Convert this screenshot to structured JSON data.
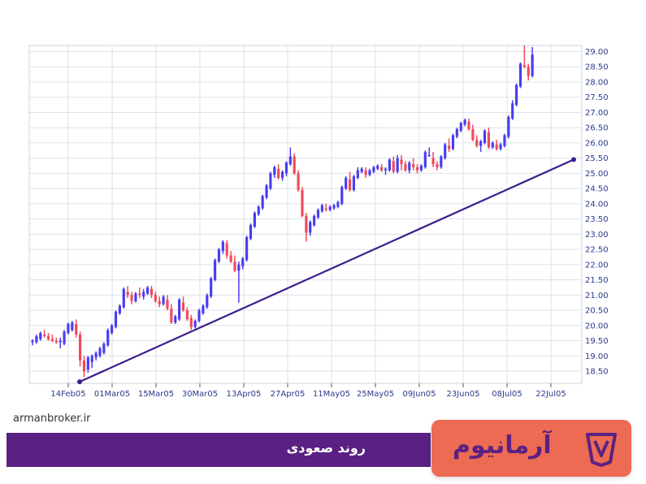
{
  "chart_data": {
    "type": "candlestick",
    "x_tick_labels": [
      "14Feb05",
      "01Mar05",
      "15Mar05",
      "30Mar05",
      "13Apr05",
      "27Apr05",
      "11May05",
      "25May05",
      "09Jun05",
      "23Jun05",
      "08Jul05",
      "22Jul05"
    ],
    "y_tick_labels": [
      "18.50",
      "19.00",
      "19.50",
      "20.00",
      "20.50",
      "21.00",
      "21.50",
      "22.00",
      "22.50",
      "23.00",
      "23.50",
      "24.00",
      "24.50",
      "25.00",
      "25.50",
      "26.00",
      "26.50",
      "27.00",
      "27.50",
      "28.00",
      "28.50",
      "29.00"
    ],
    "ylim": [
      18.1,
      29.2
    ],
    "grid": true,
    "up_color": "#4a3df0",
    "down_color": "#f04a5a",
    "trendline": {
      "label": "روند صعودی",
      "start": {
        "x": "09Feb05",
        "y": 18.15
      },
      "end": {
        "x": "31Jul05",
        "y": 25.45
      },
      "color": "#3c1d8c"
    },
    "candles": [
      {
        "d": "01Feb05",
        "o": 19.45,
        "h": 19.55,
        "l": 19.35,
        "c": 19.5
      },
      {
        "d": "02Feb05",
        "o": 19.45,
        "h": 19.7,
        "l": 19.4,
        "c": 19.65
      },
      {
        "d": "03Feb05",
        "o": 19.55,
        "h": 19.8,
        "l": 19.5,
        "c": 19.75
      },
      {
        "d": "04Feb05",
        "o": 19.7,
        "h": 19.85,
        "l": 19.6,
        "c": 19.65
      },
      {
        "d": "05Feb05",
        "o": 19.65,
        "h": 19.75,
        "l": 19.5,
        "c": 19.55
      },
      {
        "d": "06Feb05",
        "o": 19.55,
        "h": 19.7,
        "l": 19.45,
        "c": 19.5
      },
      {
        "d": "07Feb05",
        "o": 19.5,
        "h": 19.6,
        "l": 19.4,
        "c": 19.45
      },
      {
        "d": "08Feb05",
        "o": 19.45,
        "h": 19.6,
        "l": 19.25,
        "c": 19.5
      },
      {
        "d": "09Feb05",
        "o": 19.4,
        "h": 19.85,
        "l": 19.35,
        "c": 19.8
      },
      {
        "d": "10Feb05",
        "o": 19.75,
        "h": 20.1,
        "l": 19.7,
        "c": 20.05
      },
      {
        "d": "11Feb05",
        "o": 19.85,
        "h": 20.15,
        "l": 19.8,
        "c": 20.1
      },
      {
        "d": "12Feb05",
        "o": 20.05,
        "h": 20.2,
        "l": 19.6,
        "c": 19.7
      },
      {
        "d": "13Feb05",
        "o": 19.7,
        "h": 19.8,
        "l": 18.65,
        "c": 18.85
      },
      {
        "d": "14Feb05",
        "o": 18.85,
        "h": 19.0,
        "l": 18.3,
        "c": 18.5
      },
      {
        "d": "15Feb05",
        "o": 18.55,
        "h": 19.0,
        "l": 18.45,
        "c": 18.95
      },
      {
        "d": "16Feb05",
        "o": 18.8,
        "h": 19.05,
        "l": 18.6,
        "c": 19.0
      },
      {
        "d": "17Feb05",
        "o": 18.95,
        "h": 19.15,
        "l": 18.85,
        "c": 19.1
      },
      {
        "d": "18Feb05",
        "o": 19.0,
        "h": 19.3,
        "l": 18.95,
        "c": 19.25
      },
      {
        "d": "19Feb05",
        "o": 19.1,
        "h": 19.45,
        "l": 19.05,
        "c": 19.4
      },
      {
        "d": "20Feb05",
        "o": 19.35,
        "h": 19.9,
        "l": 19.3,
        "c": 19.85
      },
      {
        "d": "21Feb05",
        "o": 19.75,
        "h": 20.05,
        "l": 19.7,
        "c": 20.0
      },
      {
        "d": "22Feb05",
        "o": 19.95,
        "h": 20.5,
        "l": 19.9,
        "c": 20.45
      },
      {
        "d": "23Feb05",
        "o": 20.4,
        "h": 20.7,
        "l": 20.35,
        "c": 20.65
      },
      {
        "d": "24Feb05",
        "o": 20.6,
        "h": 21.25,
        "l": 20.55,
        "c": 21.2
      },
      {
        "d": "25Feb05",
        "o": 21.1,
        "h": 21.3,
        "l": 20.9,
        "c": 21.0
      },
      {
        "d": "26Feb05",
        "o": 21.0,
        "h": 21.1,
        "l": 20.7,
        "c": 20.8
      },
      {
        "d": "27Feb05",
        "o": 20.8,
        "h": 21.1,
        "l": 20.75,
        "c": 21.05
      },
      {
        "d": "28Feb05",
        "o": 21.05,
        "h": 21.25,
        "l": 20.9,
        "c": 21.0
      },
      {
        "d": "01Mar05",
        "o": 20.95,
        "h": 21.2,
        "l": 20.85,
        "c": 21.1
      },
      {
        "d": "02Mar05",
        "o": 21.05,
        "h": 21.3,
        "l": 21.0,
        "c": 21.25
      },
      {
        "d": "03Mar05",
        "o": 21.2,
        "h": 21.3,
        "l": 20.9,
        "c": 21.0
      },
      {
        "d": "04Mar05",
        "o": 21.0,
        "h": 21.1,
        "l": 20.75,
        "c": 20.8
      },
      {
        "d": "05Mar05",
        "o": 20.8,
        "h": 20.95,
        "l": 20.6,
        "c": 20.7
      },
      {
        "d": "06Mar05",
        "o": 20.7,
        "h": 21.0,
        "l": 20.65,
        "c": 20.95
      },
      {
        "d": "07Mar05",
        "o": 20.85,
        "h": 21.0,
        "l": 20.5,
        "c": 20.55
      },
      {
        "d": "08Mar05",
        "o": 20.55,
        "h": 20.7,
        "l": 20.05,
        "c": 20.1
      },
      {
        "d": "09Mar05",
        "o": 20.1,
        "h": 20.35,
        "l": 20.05,
        "c": 20.3
      },
      {
        "d": "10Mar05",
        "o": 20.2,
        "h": 20.9,
        "l": 20.15,
        "c": 20.85
      },
      {
        "d": "11Mar05",
        "o": 20.75,
        "h": 20.95,
        "l": 20.45,
        "c": 20.5
      },
      {
        "d": "12Mar05",
        "o": 20.5,
        "h": 20.6,
        "l": 20.15,
        "c": 20.2
      },
      {
        "d": "13Mar05",
        "o": 20.25,
        "h": 20.35,
        "l": 19.85,
        "c": 19.95
      },
      {
        "d": "14Mar05",
        "o": 19.95,
        "h": 20.2,
        "l": 19.9,
        "c": 20.15
      },
      {
        "d": "15Mar05",
        "o": 20.15,
        "h": 20.55,
        "l": 20.1,
        "c": 20.5
      },
      {
        "d": "16Mar05",
        "o": 20.4,
        "h": 20.7,
        "l": 20.35,
        "c": 20.65
      },
      {
        "d": "17Mar05",
        "o": 20.6,
        "h": 21.05,
        "l": 20.55,
        "c": 21.0
      },
      {
        "d": "18Mar05",
        "o": 20.95,
        "h": 21.6,
        "l": 20.9,
        "c": 21.55
      },
      {
        "d": "19Mar05",
        "o": 21.5,
        "h": 22.2,
        "l": 21.45,
        "c": 22.15
      },
      {
        "d": "20Mar05",
        "o": 22.1,
        "h": 22.55,
        "l": 22.05,
        "c": 22.5
      },
      {
        "d": "21Mar05",
        "o": 22.45,
        "h": 22.8,
        "l": 22.35,
        "c": 22.75
      },
      {
        "d": "22Mar05",
        "o": 22.7,
        "h": 22.8,
        "l": 22.2,
        "c": 22.3
      },
      {
        "d": "23Mar05",
        "o": 22.3,
        "h": 22.45,
        "l": 22.05,
        "c": 22.1
      },
      {
        "d": "24Mar05",
        "o": 22.1,
        "h": 22.3,
        "l": 21.75,
        "c": 21.8
      },
      {
        "d": "25Mar05",
        "o": 21.8,
        "h": 22.1,
        "l": 20.75,
        "c": 22.0
      },
      {
        "d": "26Mar05",
        "o": 21.95,
        "h": 22.25,
        "l": 21.85,
        "c": 22.2
      },
      {
        "d": "27Mar05",
        "o": 22.15,
        "h": 22.95,
        "l": 22.1,
        "c": 22.9
      },
      {
        "d": "28Mar05",
        "o": 22.85,
        "h": 23.35,
        "l": 22.8,
        "c": 23.3
      },
      {
        "d": "29Mar05",
        "o": 23.25,
        "h": 23.75,
        "l": 23.2,
        "c": 23.7
      },
      {
        "d": "30Mar05",
        "o": 23.65,
        "h": 23.95,
        "l": 23.6,
        "c": 23.9
      },
      {
        "d": "31Mar05",
        "o": 23.85,
        "h": 24.3,
        "l": 23.8,
        "c": 24.25
      },
      {
        "d": "01Apr05",
        "o": 24.2,
        "h": 24.65,
        "l": 24.15,
        "c": 24.6
      },
      {
        "d": "02Apr05",
        "o": 24.5,
        "h": 25.05,
        "l": 24.45,
        "c": 25.0
      },
      {
        "d": "03Apr05",
        "o": 24.95,
        "h": 25.25,
        "l": 24.85,
        "c": 25.2
      },
      {
        "d": "04Apr05",
        "o": 25.15,
        "h": 25.3,
        "l": 24.8,
        "c": 24.85
      },
      {
        "d": "05Apr05",
        "o": 24.85,
        "h": 25.1,
        "l": 24.75,
        "c": 25.05
      },
      {
        "d": "06Apr05",
        "o": 25.0,
        "h": 25.4,
        "l": 24.9,
        "c": 25.35
      },
      {
        "d": "07Apr05",
        "o": 25.3,
        "h": 25.85,
        "l": 25.25,
        "c": 25.55
      },
      {
        "d": "08Apr05",
        "o": 25.55,
        "h": 25.65,
        "l": 24.95,
        "c": 25.0
      },
      {
        "d": "09Apr05",
        "o": 25.0,
        "h": 25.1,
        "l": 24.4,
        "c": 24.45
      },
      {
        "d": "10Apr05",
        "o": 24.45,
        "h": 24.55,
        "l": 23.55,
        "c": 23.6
      },
      {
        "d": "11Apr05",
        "o": 23.6,
        "h": 23.7,
        "l": 22.75,
        "c": 23.05
      },
      {
        "d": "12Apr05",
        "o": 23.05,
        "h": 23.45,
        "l": 22.95,
        "c": 23.4
      },
      {
        "d": "13Apr05",
        "o": 23.3,
        "h": 23.65,
        "l": 23.25,
        "c": 23.6
      },
      {
        "d": "14Apr05",
        "o": 23.55,
        "h": 23.85,
        "l": 23.5,
        "c": 23.8
      },
      {
        "d": "15Apr05",
        "o": 23.75,
        "h": 24.0,
        "l": 23.7,
        "c": 23.95
      },
      {
        "d": "16Apr05",
        "o": 23.85,
        "h": 24.0,
        "l": 23.75,
        "c": 23.8
      },
      {
        "d": "17Apr05",
        "o": 23.8,
        "h": 23.95,
        "l": 23.75,
        "c": 23.9
      },
      {
        "d": "18Apr05",
        "o": 23.85,
        "h": 24.0,
        "l": 23.8,
        "c": 23.95
      },
      {
        "d": "19Apr05",
        "o": 23.9,
        "h": 24.1,
        "l": 23.85,
        "c": 24.05
      },
      {
        "d": "20Apr05",
        "o": 24.0,
        "h": 24.6,
        "l": 23.95,
        "c": 24.55
      },
      {
        "d": "21Apr05",
        "o": 24.5,
        "h": 24.9,
        "l": 24.45,
        "c": 24.85
      },
      {
        "d": "22Apr05",
        "o": 24.8,
        "h": 25.05,
        "l": 24.4,
        "c": 24.45
      },
      {
        "d": "23Apr05",
        "o": 24.45,
        "h": 24.95,
        "l": 24.4,
        "c": 24.9
      },
      {
        "d": "24Apr05",
        "o": 24.85,
        "h": 25.2,
        "l": 24.8,
        "c": 25.1
      },
      {
        "d": "25Apr05",
        "o": 25.05,
        "h": 25.2,
        "l": 25.0,
        "c": 25.15
      },
      {
        "d": "26Apr05",
        "o": 25.1,
        "h": 25.2,
        "l": 24.85,
        "c": 24.95
      },
      {
        "d": "27Apr05",
        "o": 24.95,
        "h": 25.15,
        "l": 24.9,
        "c": 25.1
      },
      {
        "d": "28Apr05",
        "o": 25.05,
        "h": 25.25,
        "l": 25.0,
        "c": 25.2
      },
      {
        "d": "29Apr05",
        "o": 25.15,
        "h": 25.3,
        "l": 25.1,
        "c": 25.25
      },
      {
        "d": "30Apr05",
        "o": 25.2,
        "h": 25.3,
        "l": 25.05,
        "c": 25.1
      },
      {
        "d": "01May05",
        "o": 25.1,
        "h": 25.2,
        "l": 24.95,
        "c": 25.15
      },
      {
        "d": "02May05",
        "o": 25.1,
        "h": 25.5,
        "l": 25.05,
        "c": 25.45
      },
      {
        "d": "03May05",
        "o": 25.4,
        "h": 25.55,
        "l": 25.0,
        "c": 25.05
      },
      {
        "d": "04May05",
        "o": 25.05,
        "h": 25.6,
        "l": 25.0,
        "c": 25.5
      },
      {
        "d": "05May05",
        "o": 25.45,
        "h": 25.6,
        "l": 25.1,
        "c": 25.3
      },
      {
        "d": "06May05",
        "o": 25.3,
        "h": 25.4,
        "l": 25.05,
        "c": 25.1
      },
      {
        "d": "07May05",
        "o": 25.1,
        "h": 25.4,
        "l": 25.0,
        "c": 25.35
      },
      {
        "d": "08May05",
        "o": 25.3,
        "h": 25.5,
        "l": 25.1,
        "c": 25.2
      },
      {
        "d": "09May05",
        "o": 25.2,
        "h": 25.3,
        "l": 25.0,
        "c": 25.1
      },
      {
        "d": "10May05",
        "o": 25.1,
        "h": 25.3,
        "l": 25.05,
        "c": 25.25
      },
      {
        "d": "11May05",
        "o": 25.2,
        "h": 25.75,
        "l": 25.15,
        "c": 25.7
      },
      {
        "d": "12May05",
        "o": 25.6,
        "h": 25.85,
        "l": 25.55,
        "c": 25.6
      },
      {
        "d": "13May05",
        "o": 25.5,
        "h": 25.7,
        "l": 25.2,
        "c": 25.3
      },
      {
        "d": "14May05",
        "o": 25.3,
        "h": 25.4,
        "l": 25.1,
        "c": 25.2
      },
      {
        "d": "15May05",
        "o": 25.2,
        "h": 25.6,
        "l": 25.15,
        "c": 25.55
      },
      {
        "d": "16May05",
        "o": 25.5,
        "h": 26.0,
        "l": 25.45,
        "c": 25.95
      },
      {
        "d": "17May05",
        "o": 25.9,
        "h": 26.15,
        "l": 25.7,
        "c": 25.8
      },
      {
        "d": "18May05",
        "o": 25.8,
        "h": 26.3,
        "l": 25.75,
        "c": 26.25
      },
      {
        "d": "19May05",
        "o": 26.2,
        "h": 26.5,
        "l": 26.15,
        "c": 26.45
      },
      {
        "d": "20May05",
        "o": 26.4,
        "h": 26.7,
        "l": 26.35,
        "c": 26.65
      },
      {
        "d": "21May05",
        "o": 26.6,
        "h": 26.8,
        "l": 26.55,
        "c": 26.75
      },
      {
        "d": "22May05",
        "o": 26.7,
        "h": 26.8,
        "l": 26.4,
        "c": 26.45
      },
      {
        "d": "23May05",
        "o": 26.45,
        "h": 26.6,
        "l": 26.05,
        "c": 26.1
      },
      {
        "d": "24May05",
        "o": 26.1,
        "h": 26.25,
        "l": 25.85,
        "c": 25.9
      },
      {
        "d": "25May05",
        "o": 25.9,
        "h": 26.1,
        "l": 25.7,
        "c": 26.05
      },
      {
        "d": "26May05",
        "o": 26.0,
        "h": 26.45,
        "l": 25.95,
        "c": 26.4
      },
      {
        "d": "27May05",
        "o": 26.35,
        "h": 26.5,
        "l": 25.8,
        "c": 25.85
      },
      {
        "d": "28May05",
        "o": 25.85,
        "h": 26.05,
        "l": 25.8,
        "c": 26.0
      },
      {
        "d": "29May05",
        "o": 25.95,
        "h": 26.1,
        "l": 25.75,
        "c": 25.8
      },
      {
        "d": "30May05",
        "o": 25.8,
        "h": 26.0,
        "l": 25.75,
        "c": 25.95
      },
      {
        "d": "31May05",
        "o": 25.9,
        "h": 26.3,
        "l": 25.85,
        "c": 26.25
      },
      {
        "d": "01Jun05",
        "o": 26.2,
        "h": 26.9,
        "l": 26.15,
        "c": 26.85
      },
      {
        "d": "02Jun05",
        "o": 26.8,
        "h": 27.4,
        "l": 26.75,
        "c": 27.3
      },
      {
        "d": "03Jun05",
        "o": 27.25,
        "h": 27.95,
        "l": 27.2,
        "c": 27.9
      },
      {
        "d": "04Jun05",
        "o": 27.85,
        "h": 28.65,
        "l": 27.8,
        "c": 28.6
      },
      {
        "d": "05Jun05",
        "o": 28.55,
        "h": 29.2,
        "l": 28.45,
        "c": 28.5
      },
      {
        "d": "06Jun05",
        "o": 28.5,
        "h": 28.6,
        "l": 28.05,
        "c": 28.2
      },
      {
        "d": "07Jun05",
        "o": 28.2,
        "h": 29.15,
        "l": 28.15,
        "c": 28.9
      }
    ]
  },
  "footer": {
    "website": "armanbroker.ir",
    "title": "روند صعودی"
  },
  "brand": {
    "name": "آرمانیوم",
    "logo_icon": "shield-v-logo-icon",
    "box_color": "#ec6b52",
    "text_color": "#5b2083"
  }
}
